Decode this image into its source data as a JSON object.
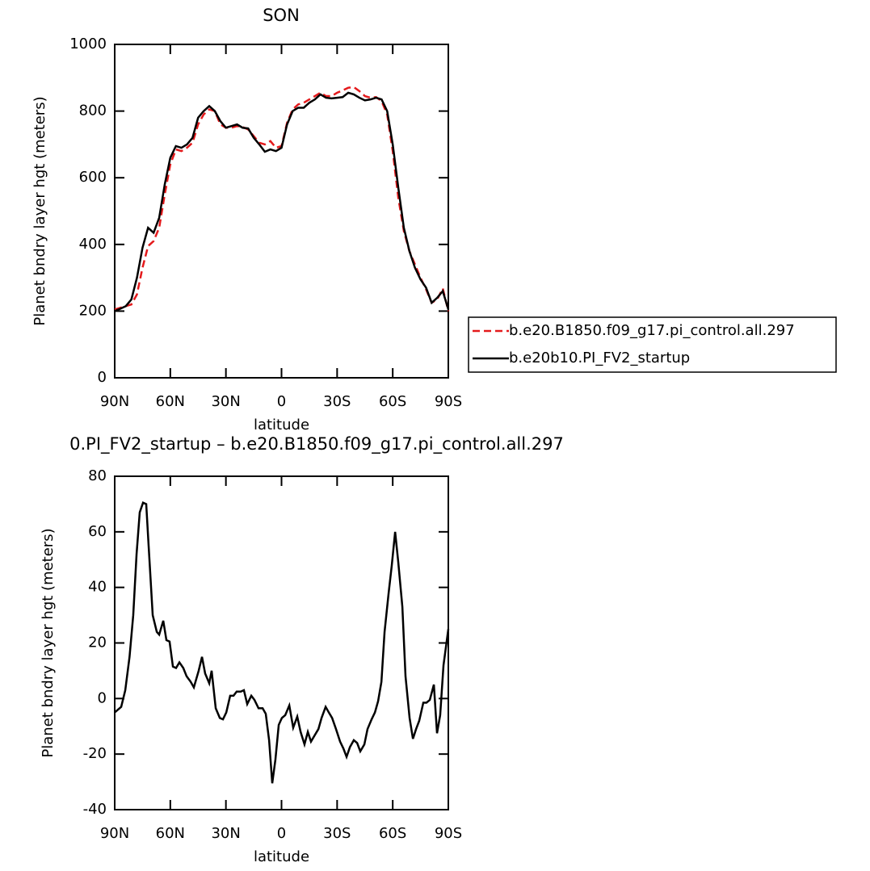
{
  "chart_data": [
    {
      "type": "line",
      "title": "SON",
      "x_label": "latitude",
      "y_label": "Planet bndry layer hgt (meters)",
      "x": [
        90,
        87,
        84,
        81,
        78,
        75,
        72,
        69,
        66,
        63,
        60,
        57,
        54,
        51,
        48,
        45,
        42,
        39,
        36,
        33,
        30,
        27,
        24,
        21,
        18,
        15,
        12,
        9,
        6,
        3,
        0,
        -3,
        -6,
        -9,
        -12,
        -15,
        -18,
        -21,
        -24,
        -27,
        -30,
        -33,
        -36,
        -39,
        -42,
        -45,
        -48,
        -51,
        -54,
        -57,
        -60,
        -63,
        -66,
        -69,
        -72,
        -75,
        -78,
        -81,
        -84,
        -87,
        -90
      ],
      "series": [
        {
          "name": "b.e20.B1850.f09_g17.pi_control.all.297",
          "color": "#e41a1c",
          "dashed": true,
          "values": [
            205,
            210,
            215,
            220,
            250,
            330,
            395,
            410,
            450,
            550,
            640,
            685,
            680,
            690,
            705,
            760,
            790,
            805,
            800,
            760,
            750,
            750,
            755,
            752,
            745,
            725,
            705,
            700,
            710,
            690,
            695,
            765,
            805,
            820,
            825,
            835,
            845,
            855,
            845,
            845,
            855,
            862,
            870,
            872,
            860,
            845,
            840,
            842,
            830,
            790,
            680,
            540,
            440,
            380,
            340,
            300,
            265,
            225,
            235,
            268,
            200
          ]
        },
        {
          "name": "b.e20b10.PI_FV2_startup",
          "color": "#000000",
          "dashed": false,
          "values": [
            200,
            207,
            215,
            235,
            300,
            390,
            450,
            435,
            480,
            580,
            660,
            695,
            690,
            700,
            720,
            780,
            800,
            815,
            800,
            770,
            750,
            755,
            760,
            750,
            748,
            720,
            700,
            678,
            685,
            680,
            690,
            760,
            800,
            810,
            810,
            825,
            835,
            850,
            840,
            838,
            840,
            842,
            855,
            850,
            840,
            832,
            835,
            840,
            835,
            800,
            700,
            570,
            450,
            380,
            330,
            295,
            270,
            225,
            240,
            260,
            205
          ]
        }
      ],
      "xlim": [
        90,
        -90
      ],
      "xticks": [
        {
          "value": 90,
          "label": "90N"
        },
        {
          "value": 60,
          "label": "60N"
        },
        {
          "value": 30,
          "label": "30N"
        },
        0,
        {
          "value": -30,
          "label": "30S"
        },
        {
          "value": -60,
          "label": "60S"
        },
        {
          "value": -90,
          "label": "90S"
        }
      ],
      "ylim": [
        0,
        1000
      ],
      "yticks": [
        0,
        200,
        400,
        600,
        800,
        1000
      ],
      "legend": "right"
    },
    {
      "type": "line",
      "title": "0.PI_FV2_startup – b.e20.B1850.f09_g17.pi_control.all.297",
      "x_label": "latitude",
      "y_label": "Planet bndry layer hgt (meters)",
      "x": [
        90,
        86.5,
        84.3,
        82,
        80,
        78.2,
        76.5,
        74.7,
        73,
        71.7,
        69.5,
        67.3,
        66,
        63.8,
        62.1,
        60.4,
        58.6,
        56.9,
        55.1,
        53,
        51.2,
        49,
        47.3,
        44.7,
        42.9,
        41.2,
        39,
        37.7,
        35.5,
        33.3,
        31.6,
        29.8,
        27.7,
        25.9,
        24.2,
        22,
        20.3,
        18.5,
        16.3,
        14.6,
        12.4,
        10.2,
        8.5,
        6.7,
        5,
        3.3,
        1.5,
        -0.2,
        -2,
        -4.2,
        -6.3,
        -8.5,
        -10.3,
        -12.4,
        -14.2,
        -15.9,
        -18.1,
        -19.9,
        -21.6,
        -23.8,
        -25.5,
        -27.3,
        -29.4,
        -31.6,
        -33.4,
        -35.1,
        -36.9,
        -39,
        -40.8,
        -42.5,
        -44.7,
        -46.4,
        -48.6,
        -50.4,
        -52.1,
        -53.9,
        -55.6,
        -57.8,
        -59.5,
        -61.3,
        -63,
        -65.2,
        -66.9,
        -69.1,
        -70.9,
        -72.6,
        -74.3,
        -76.5,
        -78.2,
        -80,
        -82.2,
        -83.9,
        -85.6,
        -87.4,
        -90
      ],
      "series": [
        {
          "color": "#000000",
          "dashed": false,
          "values": [
            -5,
            -3,
            3,
            15,
            30,
            52,
            67,
            70.5,
            70,
            55,
            30,
            24,
            23,
            28,
            21,
            20.5,
            11.5,
            11,
            13,
            11,
            8,
            6,
            4,
            10,
            15,
            9,
            5.5,
            10,
            -3.5,
            -7,
            -7.5,
            -5,
            1,
            1,
            2.5,
            2.5,
            3,
            -2,
            1,
            -0.5,
            -3.5,
            -3.5,
            -5.5,
            -15,
            -30.5,
            -22,
            -9.5,
            -7,
            -6,
            -2.5,
            -10.5,
            -6.5,
            -12,
            -16.5,
            -12,
            -15.5,
            -13,
            -11,
            -7,
            -3,
            -5,
            -7,
            -11,
            -15.5,
            -18,
            -21,
            -17.5,
            -15,
            -16,
            -19,
            -16.5,
            -11,
            -7.5,
            -5,
            -1,
            6,
            24,
            38,
            48,
            60,
            49,
            33,
            8,
            -7,
            -14.5,
            -11,
            -8,
            -1.5,
            -1.5,
            -0.5,
            5,
            -12.5,
            -6,
            12,
            25
          ]
        }
      ],
      "xlim": [
        90,
        -90
      ],
      "xticks": [
        {
          "value": 90,
          "label": "90N"
        },
        {
          "value": 60,
          "label": "60N"
        },
        {
          "value": 30,
          "label": "30N"
        },
        0,
        {
          "value": -30,
          "label": "30S"
        },
        {
          "value": -60,
          "label": "60S"
        },
        {
          "value": -90,
          "label": "90S"
        }
      ],
      "ylim": [
        -40,
        80
      ],
      "yticks": [
        -40,
        -20,
        0,
        20,
        40,
        60,
        80
      ]
    }
  ]
}
